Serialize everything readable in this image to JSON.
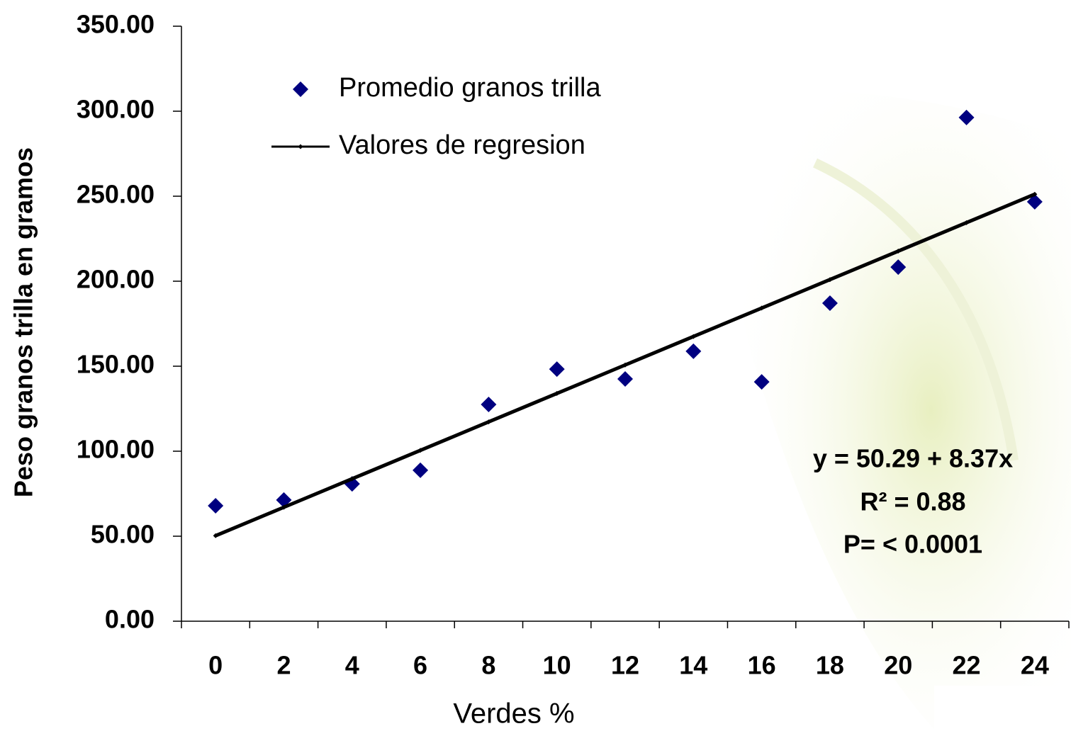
{
  "chart_data": {
    "type": "line",
    "x_label": "Verdes %",
    "y_label": "Peso granos trilla en gramos",
    "categories": [
      0,
      2,
      4,
      6,
      8,
      10,
      12,
      14,
      16,
      18,
      20,
      22,
      24
    ],
    "series": [
      {
        "name": "Promedio granos trilla",
        "color": "#000080",
        "style": "markers",
        "values": [
          67.9,
          71.3,
          80.8,
          88.8,
          127.5,
          148.3,
          142.5,
          158.8,
          140.8,
          187.1,
          208.3,
          296.3,
          246.7
        ]
      },
      {
        "name": "Valores de regresion",
        "color": "#000000",
        "style": "line",
        "values": [
          50.29,
          67.03,
          83.77,
          100.51,
          117.25,
          133.99,
          150.73,
          167.47,
          184.21,
          200.95,
          217.69,
          234.43,
          251.17
        ]
      }
    ],
    "ylim": [
      0,
      350
    ],
    "yticks": [
      {
        "value": 0,
        "label": "0.00"
      },
      {
        "value": 50,
        "label": "50.00"
      },
      {
        "value": 100,
        "label": "100.00"
      },
      {
        "value": 150,
        "label": "150.00"
      },
      {
        "value": 200,
        "label": "200.00"
      },
      {
        "value": 250,
        "label": "250.00"
      },
      {
        "value": 300,
        "label": "300.00"
      },
      {
        "value": 350,
        "label": "350.00"
      }
    ],
    "grid": false,
    "legend": "top-left",
    "annotations": [
      "y = 50.29 + 8.37x",
      "R² = 0.88",
      "P= < 0.0001"
    ]
  }
}
